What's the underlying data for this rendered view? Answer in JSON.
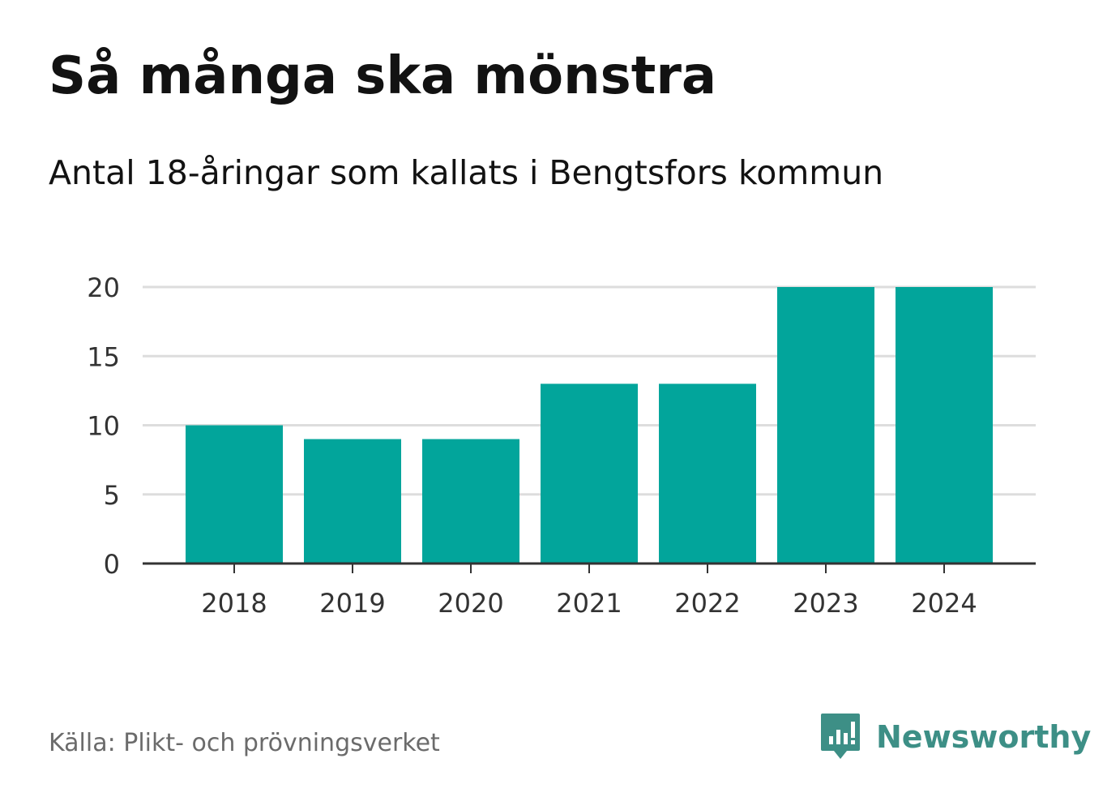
{
  "title": "Så många ska mönstra",
  "subtitle": "Antal 18-åringar som kallats i Bengtsfors kommun",
  "source": "Källa: Plikt- och prövningsverket",
  "brand": {
    "name": "Newsworthy",
    "icon": "newsworthy-logo-icon",
    "color": "#3d8f86"
  },
  "colors": {
    "bar": "#02a59b",
    "grid": "#dddddd",
    "axis": "#333333",
    "text": "#333333"
  },
  "chart_data": {
    "type": "bar",
    "title": "Så många ska mönstra",
    "subtitle": "Antal 18-åringar som kallats i Bengtsfors kommun",
    "xlabel": "",
    "ylabel": "",
    "categories": [
      "2018",
      "2019",
      "2020",
      "2021",
      "2022",
      "2023",
      "2024"
    ],
    "values": [
      10,
      9,
      9,
      13,
      13,
      20,
      20
    ],
    "ylim": [
      0,
      20
    ],
    "yticks": [
      0,
      5,
      10,
      15,
      20
    ],
    "grid": true,
    "legend": "none"
  }
}
